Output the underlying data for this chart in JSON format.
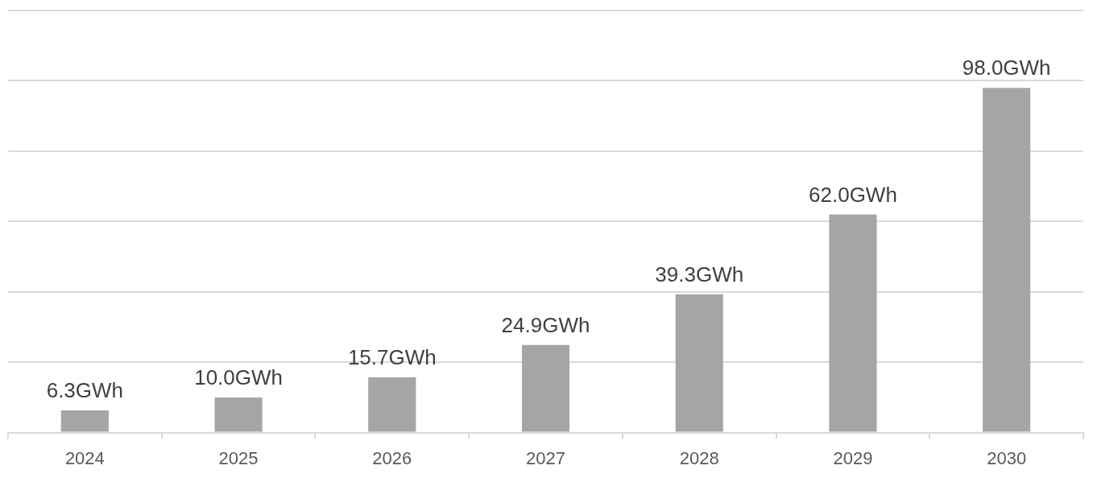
{
  "chart_data": {
    "type": "bar",
    "categories": [
      "2024",
      "2025",
      "2026",
      "2027",
      "2028",
      "2029",
      "2030"
    ],
    "values": [
      6.3,
      10.0,
      15.7,
      24.9,
      39.3,
      62.0,
      98.0
    ],
    "value_labels": [
      "6.3GWh",
      "10.0GWh",
      "15.7GWh",
      "24.9GWh",
      "39.3GWh",
      "62.0GWh",
      "98.0GWh"
    ],
    "color": "#a5a5a5",
    "ylim": [
      0,
      120
    ],
    "yticks": [
      {
        "value": 0,
        "label": null
      },
      {
        "value": 20,
        "label": null
      },
      {
        "value": 40,
        "label": null
      },
      {
        "value": 60,
        "label": null
      },
      {
        "value": 80,
        "label": null
      },
      {
        "value": 100,
        "label": null
      },
      {
        "value": 120,
        "label": null
      }
    ],
    "grid": "y",
    "tick_labels": "x"
  }
}
